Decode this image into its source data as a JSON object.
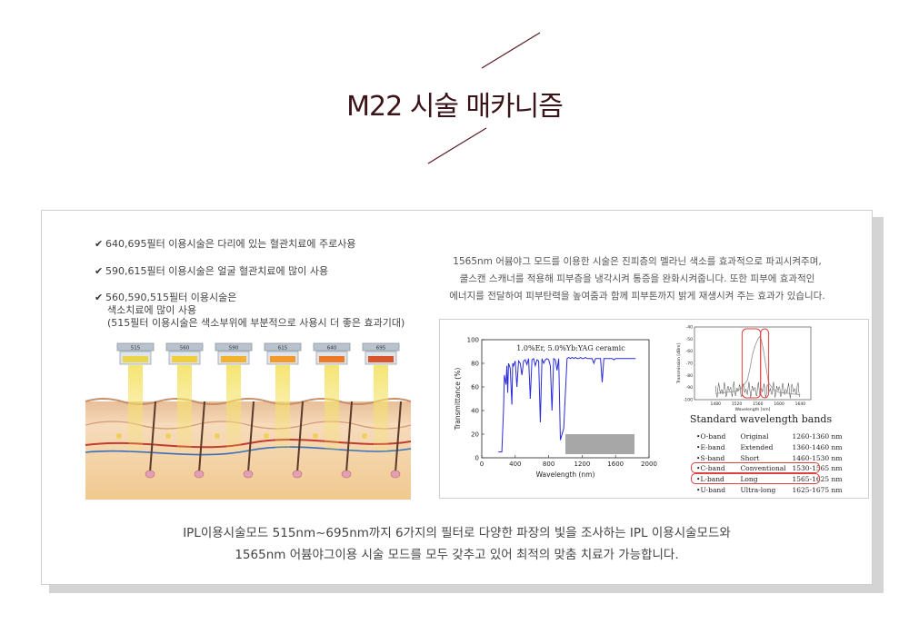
{
  "title": "M22 시술 매카니즘",
  "left_bullets": [
    {
      "lines": [
        "640,695필터 이용시술은 다리에 있는 혈관치료에 주로사용"
      ]
    },
    {
      "lines": [
        "590,615필터 이용시술은 얼굴 혈관치료에 많이 사용"
      ]
    },
    {
      "lines": [
        "560,590,515필터 이용시술은",
        "색소치료에 많이 사용",
        "(515필터 이용시술은 색소부위에 부분적으로 사용시 더 좋은 효과기대)"
      ]
    }
  ],
  "check_symbol": "✔",
  "filters": [
    {
      "label": "515",
      "color": "#e9d64a"
    },
    {
      "label": "560",
      "color": "#f0cf3a"
    },
    {
      "label": "590",
      "color": "#f3b22e"
    },
    {
      "label": "615",
      "color": "#f39a2a"
    },
    {
      "label": "640",
      "color": "#ee7a28"
    },
    {
      "label": "695",
      "color": "#d8562a"
    }
  ],
  "description": [
    "1565nm 어븀야그 모드를 이용한 시술은 진피층의 멜라닌 색소를 효과적으로 파괴시켜주며,",
    "쿨스캔 스캐너를 적용해 피부층을 냉각시켜 통증을 완화시켜줍니다. 또한 피부에 효과적인",
    "에너지를 전달하여 피부탄력을 높여줌과 함께 피부톤까지 밝게 재생시켜 주는 효과가 있습니다."
  ],
  "chart_data": [
    {
      "type": "line",
      "title": "1.0%Er, 5.0%Yb:YAG ceramic",
      "xlabel": "Wavelength (nm)",
      "ylabel": "Transmittance (%)",
      "xlim": [
        0,
        2000
      ],
      "ylim": [
        0,
        100
      ],
      "xticks": [
        0,
        400,
        800,
        1200,
        1600,
        2000
      ],
      "yticks": [
        0,
        20,
        40,
        60,
        80,
        100
      ],
      "series": [
        {
          "x": [
            200,
            240,
            260,
            270,
            290,
            300,
            310,
            320,
            340,
            360,
            370,
            380,
            400,
            420,
            440,
            460,
            480,
            500,
            520,
            540,
            560,
            580,
            600,
            620,
            640,
            660,
            680,
            700,
            720,
            740,
            760,
            780,
            800,
            820,
            840,
            860,
            880,
            900,
            920,
            940,
            960,
            980,
            1000,
            1020,
            1040,
            1060,
            1080,
            1100,
            1120,
            1140,
            1160,
            1180,
            1200,
            1220,
            1240,
            1260,
            1280,
            1300,
            1320,
            1340,
            1360,
            1380,
            1400,
            1420,
            1440,
            1460,
            1480,
            1500,
            1520,
            1540,
            1560,
            1580,
            1600,
            1640,
            1680,
            1720,
            1760,
            1800,
            1840
          ],
          "y": [
            5,
            5,
            40,
            70,
            62,
            78,
            55,
            80,
            76,
            45,
            80,
            78,
            82,
            60,
            82,
            80,
            70,
            82,
            83,
            79,
            84,
            50,
            83,
            84,
            78,
            83,
            82,
            30,
            84,
            80,
            83,
            84,
            83,
            78,
            40,
            84,
            83,
            74,
            84,
            15,
            20,
            25,
            55,
            84,
            85,
            84,
            85,
            84,
            85,
            84,
            84,
            85,
            84,
            84,
            85,
            84,
            84,
            84,
            84,
            80,
            84,
            84,
            84,
            84,
            64,
            84,
            84,
            84,
            84,
            84,
            84,
            83,
            84,
            84,
            84,
            84,
            84,
            84,
            84
          ]
        }
      ]
    },
    {
      "type": "line",
      "title": "",
      "xlabel": "Wavelength [nm]",
      "ylabel": "Transmission [dBm]",
      "xticks": [
        1480,
        1520,
        1560,
        1600,
        1640
      ],
      "yticks": [
        -40,
        -50,
        -60,
        -70,
        -80,
        -90,
        -100
      ],
      "xlim": [
        1440,
        1660
      ],
      "ylim": [
        -100,
        -40
      ],
      "series": [
        {
          "x": [
            1480,
            1500,
            1520,
            1530,
            1540,
            1545,
            1550,
            1555,
            1560,
            1563,
            1566,
            1570,
            1575,
            1580,
            1590,
            1600,
            1620,
            1640
          ],
          "y": [
            -95,
            -94,
            -93,
            -90,
            -84,
            -74,
            -62,
            -55,
            -50,
            -48,
            -50,
            -58,
            -72,
            -86,
            -92,
            -94,
            -95,
            -96
          ]
        }
      ]
    }
  ],
  "bands_title": "Standard wavelength bands",
  "bands": [
    {
      "band": "O-band",
      "type": "Original",
      "range": "1260-1360 nm",
      "highlight": false
    },
    {
      "band": "E-band",
      "type": "Extended",
      "range": "1360-1460 nm",
      "highlight": false
    },
    {
      "band": "S-band",
      "type": "Short",
      "range": "1460-1530 nm",
      "highlight": false
    },
    {
      "band": "C-band",
      "type": "Conventional",
      "range": "1530-1565 nm",
      "highlight": true
    },
    {
      "band": "L-band",
      "type": "Long",
      "range": "1565-1625 nm",
      "highlight": true
    },
    {
      "band": "U-band",
      "type": "Ultra-long",
      "range": "1625-1675 nm",
      "highlight": false
    }
  ],
  "footer": [
    "IPL이용시술모드 515nm~695nm까지 6가지의 필터로 다양한 파장의 빛을 조사하는 IPL 이용시술모드와",
    "1565nm 어븀야그이용 시술 모드를 모두 갖추고 있어 최적의 맞춤 치료가 가능합니다."
  ],
  "colors": {
    "title": "#3a1418",
    "curve": "#2a2ad8",
    "highlight": "#e04040",
    "accent_line": "#5a1a20"
  }
}
